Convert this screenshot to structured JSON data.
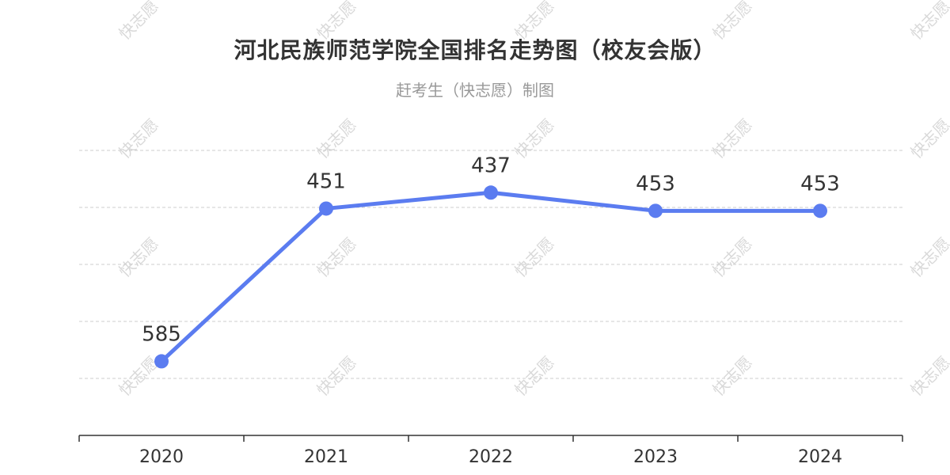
{
  "header": {
    "title": "河北民族师范学院全国排名走势图（校友会版）",
    "subtitle": "赶考生（快志愿）制图"
  },
  "watermark": {
    "text": "快志愿"
  },
  "colors": {
    "line": "#5b7cf0",
    "grid": "#cccccc",
    "axis": "#333333",
    "label": "#333333",
    "tick": "#333333"
  },
  "chart_data": {
    "type": "line",
    "title": "河北民族师范学院全国排名走势图（校友会版）",
    "subtitle": "赶考生（快志愿）制图",
    "categories": [
      "2020",
      "2021",
      "2022",
      "2023",
      "2024"
    ],
    "series": [
      {
        "values": [
          585,
          451,
          437,
          453,
          453
        ]
      }
    ],
    "y_axis": {
      "inverted": true,
      "range": [
        400,
        650
      ],
      "gridlines": [
        400,
        450,
        500,
        550,
        600
      ],
      "tick_labels_visible": false
    },
    "grid": true,
    "data_labels": true,
    "legend": "none"
  }
}
